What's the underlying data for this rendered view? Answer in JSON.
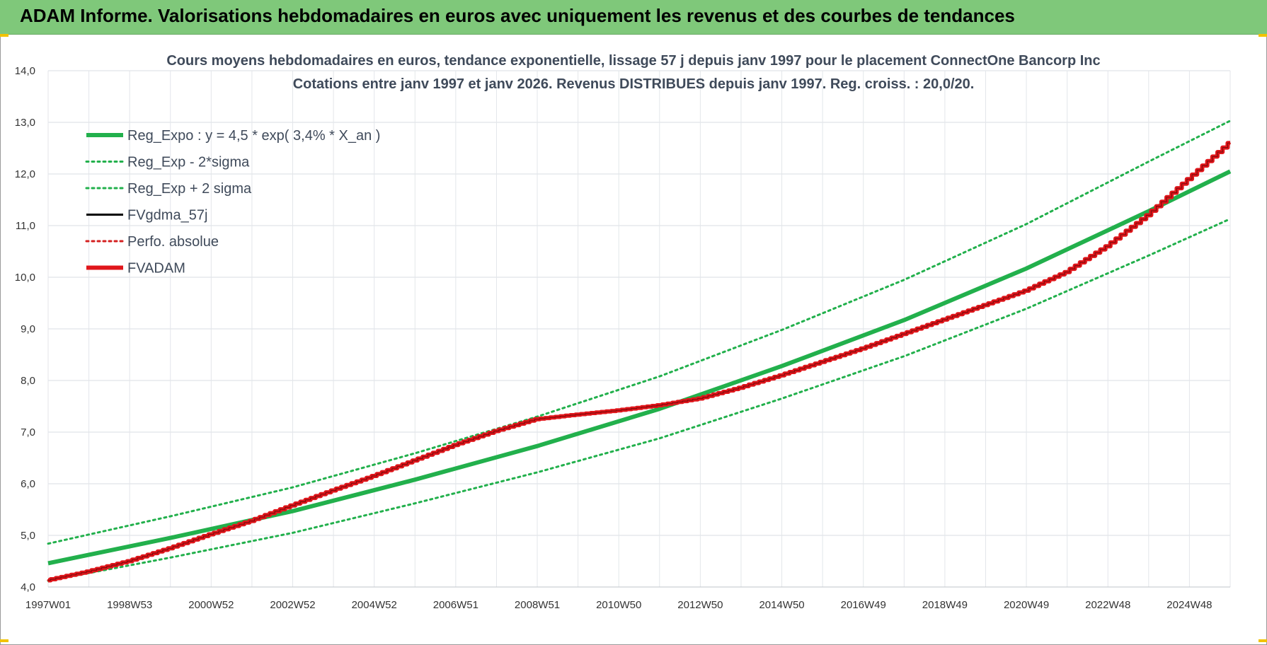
{
  "header": {
    "title": "ADAM Informe. Valorisations hebdomadaires en euros avec uniquement les revenus et des courbes de tendances"
  },
  "chart_data": {
    "type": "line",
    "title_lines": [
      "Cours moyens hebdomadaires en euros, tendance exponentielle, lissage 57 j depuis janv 1997  pour le placement ConnectOne Bancorp Inc",
      "Cotations entre janv 1997 et janv 2026. Revenus DISTRIBUES depuis janv 1997. Reg. croiss. : 20,0/20."
    ],
    "xlabel": "",
    "ylabel": "",
    "x_range": [
      1997.0,
      2026.0
    ],
    "ylim": [
      4.0,
      14.0
    ],
    "y_ticks": [
      "4,0",
      "5,0",
      "6,0",
      "7,0",
      "8,0",
      "9,0",
      "10,0",
      "11,0",
      "12,0",
      "13,0",
      "14,0"
    ],
    "x_ticks": [
      {
        "label": "1997W01",
        "x": 1997.0
      },
      {
        "label": "1998W53",
        "x": 1999.0
      },
      {
        "label": "2000W52",
        "x": 2001.0
      },
      {
        "label": "2002W52",
        "x": 2003.0
      },
      {
        "label": "2004W52",
        "x": 2005.0
      },
      {
        "label": "2006W51",
        "x": 2007.0
      },
      {
        "label": "2008W51",
        "x": 2009.0
      },
      {
        "label": "2010W50",
        "x": 2011.0
      },
      {
        "label": "2012W50",
        "x": 2013.0
      },
      {
        "label": "2014W50",
        "x": 2015.0
      },
      {
        "label": "2016W49",
        "x": 2017.0
      },
      {
        "label": "2018W49",
        "x": 2019.0
      },
      {
        "label": "2020W49",
        "x": 2021.0
      },
      {
        "label": "2022W48",
        "x": 2023.0
      },
      {
        "label": "2024W48",
        "x": 2025.0
      }
    ],
    "grid": true,
    "legend_position": "top-left",
    "series": [
      {
        "name": "Reg_Expo : y = 4,5 * exp( 3,4% *  X_an )",
        "color": "#22b04c",
        "style": "solid-thick",
        "points": [
          [
            1997,
            4.46
          ],
          [
            2000,
            4.95
          ],
          [
            2003,
            5.47
          ],
          [
            2006,
            6.08
          ],
          [
            2009,
            6.73
          ],
          [
            2012,
            7.45
          ],
          [
            2015,
            8.28
          ],
          [
            2018,
            9.17
          ],
          [
            2021,
            10.17
          ],
          [
            2024,
            11.28
          ],
          [
            2026,
            12.05
          ]
        ]
      },
      {
        "name": "Reg_Exp - 2*sigma",
        "color": "#22b04c",
        "style": "dotted",
        "points": [
          [
            1997,
            4.12
          ],
          [
            2000,
            4.57
          ],
          [
            2003,
            5.05
          ],
          [
            2006,
            5.62
          ],
          [
            2009,
            6.22
          ],
          [
            2012,
            6.88
          ],
          [
            2015,
            7.65
          ],
          [
            2018,
            8.47
          ],
          [
            2021,
            9.39
          ],
          [
            2024,
            10.42
          ],
          [
            2026,
            11.13
          ]
        ]
      },
      {
        "name": "Reg_Exp + 2 sigma",
        "color": "#22b04c",
        "style": "dotted",
        "points": [
          [
            1997,
            4.84
          ],
          [
            2000,
            5.37
          ],
          [
            2003,
            5.93
          ],
          [
            2006,
            6.59
          ],
          [
            2009,
            7.3
          ],
          [
            2012,
            8.08
          ],
          [
            2015,
            8.98
          ],
          [
            2018,
            9.95
          ],
          [
            2021,
            11.03
          ],
          [
            2024,
            12.24
          ],
          [
            2026,
            13.03
          ]
        ]
      },
      {
        "name": "FVgdma_57j",
        "color": "#000000",
        "style": "solid",
        "points": [
          [
            1997,
            4.13
          ],
          [
            1998,
            4.3
          ],
          [
            1999,
            4.5
          ],
          [
            2000,
            4.75
          ],
          [
            2001,
            5.02
          ],
          [
            2002,
            5.28
          ],
          [
            2003,
            5.58
          ],
          [
            2004,
            5.87
          ],
          [
            2005,
            6.15
          ],
          [
            2006,
            6.45
          ],
          [
            2007,
            6.75
          ],
          [
            2008,
            7.02
          ],
          [
            2009,
            7.25
          ],
          [
            2010,
            7.34
          ],
          [
            2011,
            7.42
          ],
          [
            2012,
            7.52
          ],
          [
            2013,
            7.65
          ],
          [
            2014,
            7.86
          ],
          [
            2015,
            8.1
          ],
          [
            2016,
            8.36
          ],
          [
            2017,
            8.62
          ],
          [
            2018,
            8.9
          ],
          [
            2019,
            9.18
          ],
          [
            2020,
            9.46
          ],
          [
            2021,
            9.74
          ],
          [
            2022,
            10.1
          ],
          [
            2023,
            10.6
          ],
          [
            2024,
            11.2
          ],
          [
            2025,
            11.9
          ],
          [
            2026,
            12.6
          ]
        ]
      },
      {
        "name": "Perfo. absolue",
        "color": "#d42020",
        "style": "dotted",
        "points": [
          [
            1997,
            4.13
          ],
          [
            1998,
            4.3
          ],
          [
            1999,
            4.5
          ],
          [
            2000,
            4.75
          ],
          [
            2001,
            5.02
          ],
          [
            2002,
            5.28
          ],
          [
            2003,
            5.58
          ],
          [
            2004,
            5.87
          ],
          [
            2005,
            6.15
          ],
          [
            2006,
            6.45
          ],
          [
            2007,
            6.75
          ],
          [
            2008,
            7.02
          ],
          [
            2009,
            7.25
          ],
          [
            2010,
            7.34
          ],
          [
            2011,
            7.42
          ],
          [
            2012,
            7.52
          ],
          [
            2013,
            7.65
          ],
          [
            2014,
            7.86
          ],
          [
            2015,
            8.1
          ],
          [
            2016,
            8.36
          ],
          [
            2017,
            8.62
          ],
          [
            2018,
            8.9
          ],
          [
            2019,
            9.18
          ],
          [
            2020,
            9.46
          ],
          [
            2021,
            9.74
          ],
          [
            2022,
            10.1
          ],
          [
            2023,
            10.6
          ],
          [
            2024,
            11.2
          ],
          [
            2025,
            11.9
          ],
          [
            2026,
            12.6
          ]
        ]
      },
      {
        "name": "FVADAM",
        "color": "#e0161b",
        "style": "solid-thick",
        "points": [
          [
            1997,
            4.13
          ],
          [
            1998,
            4.3
          ],
          [
            1999,
            4.5
          ],
          [
            2000,
            4.75
          ],
          [
            2001,
            5.02
          ],
          [
            2002,
            5.28
          ],
          [
            2003,
            5.58
          ],
          [
            2004,
            5.87
          ],
          [
            2005,
            6.15
          ],
          [
            2006,
            6.45
          ],
          [
            2007,
            6.75
          ],
          [
            2008,
            7.02
          ],
          [
            2009,
            7.25
          ],
          [
            2010,
            7.34
          ],
          [
            2011,
            7.42
          ],
          [
            2012,
            7.52
          ],
          [
            2013,
            7.65
          ],
          [
            2014,
            7.86
          ],
          [
            2015,
            8.1
          ],
          [
            2016,
            8.36
          ],
          [
            2017,
            8.62
          ],
          [
            2018,
            8.9
          ],
          [
            2019,
            9.18
          ],
          [
            2020,
            9.46
          ],
          [
            2021,
            9.74
          ],
          [
            2022,
            10.1
          ],
          [
            2023,
            10.6
          ],
          [
            2024,
            11.2
          ],
          [
            2025,
            11.9
          ],
          [
            2026,
            12.6
          ]
        ]
      }
    ]
  }
}
